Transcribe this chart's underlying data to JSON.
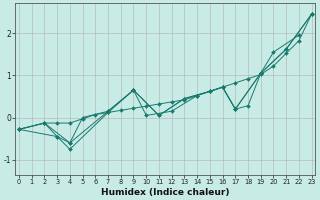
{
  "xlabel": "Humidex (Indice chaleur)",
  "bg_color": "#c8ebe6",
  "grid_color": "#b0b0b0",
  "line_color": "#1a7a6e",
  "xlim": [
    -0.3,
    23.3
  ],
  "ylim": [
    -1.35,
    2.7
  ],
  "yticks": [
    -1,
    0,
    1,
    2
  ],
  "xticks": [
    0,
    1,
    2,
    3,
    4,
    5,
    6,
    7,
    8,
    9,
    10,
    11,
    12,
    13,
    14,
    15,
    16,
    17,
    18,
    19,
    20,
    21,
    22,
    23
  ],
  "line1": [
    [
      0,
      -0.28
    ],
    [
      2,
      -0.13
    ],
    [
      3,
      -0.13
    ],
    [
      4,
      -0.13
    ],
    [
      5,
      -0.03
    ],
    [
      6,
      0.07
    ],
    [
      7,
      0.12
    ],
    [
      8,
      0.17
    ],
    [
      9,
      0.22
    ],
    [
      10,
      0.27
    ],
    [
      11,
      0.32
    ],
    [
      12,
      0.37
    ],
    [
      13,
      0.42
    ],
    [
      14,
      0.52
    ],
    [
      15,
      0.62
    ],
    [
      16,
      0.72
    ],
    [
      17,
      0.82
    ],
    [
      18,
      0.92
    ],
    [
      19,
      1.02
    ],
    [
      20,
      1.22
    ],
    [
      21,
      1.52
    ],
    [
      22,
      1.82
    ],
    [
      23,
      2.45
    ]
  ],
  "line2": [
    [
      0,
      -0.28
    ],
    [
      2,
      -0.13
    ],
    [
      3,
      -0.45
    ],
    [
      4,
      -0.75
    ],
    [
      7,
      0.12
    ],
    [
      9,
      0.65
    ],
    [
      11,
      0.05
    ],
    [
      13,
      0.45
    ],
    [
      15,
      0.62
    ],
    [
      16,
      0.72
    ],
    [
      17,
      0.2
    ],
    [
      19,
      1.05
    ],
    [
      21,
      1.62
    ],
    [
      23,
      2.45
    ]
  ],
  "line3": [
    [
      0,
      -0.28
    ],
    [
      3,
      -0.45
    ],
    [
      4,
      -0.6
    ],
    [
      7,
      0.15
    ],
    [
      9,
      0.65
    ],
    [
      11,
      0.05
    ],
    [
      13,
      0.45
    ],
    [
      15,
      0.62
    ],
    [
      16,
      0.72
    ],
    [
      17,
      0.2
    ],
    [
      19,
      1.05
    ],
    [
      20,
      1.55
    ],
    [
      22,
      1.95
    ]
  ],
  "line4": [
    [
      0,
      -0.28
    ],
    [
      2,
      -0.13
    ],
    [
      4,
      -0.6
    ],
    [
      5,
      0.0
    ],
    [
      7,
      0.15
    ],
    [
      9,
      0.65
    ],
    [
      10,
      0.05
    ],
    [
      12,
      0.15
    ],
    [
      14,
      0.52
    ],
    [
      16,
      0.72
    ],
    [
      17,
      0.2
    ],
    [
      18,
      0.28
    ],
    [
      19,
      1.05
    ],
    [
      21,
      1.62
    ],
    [
      23,
      2.45
    ]
  ]
}
